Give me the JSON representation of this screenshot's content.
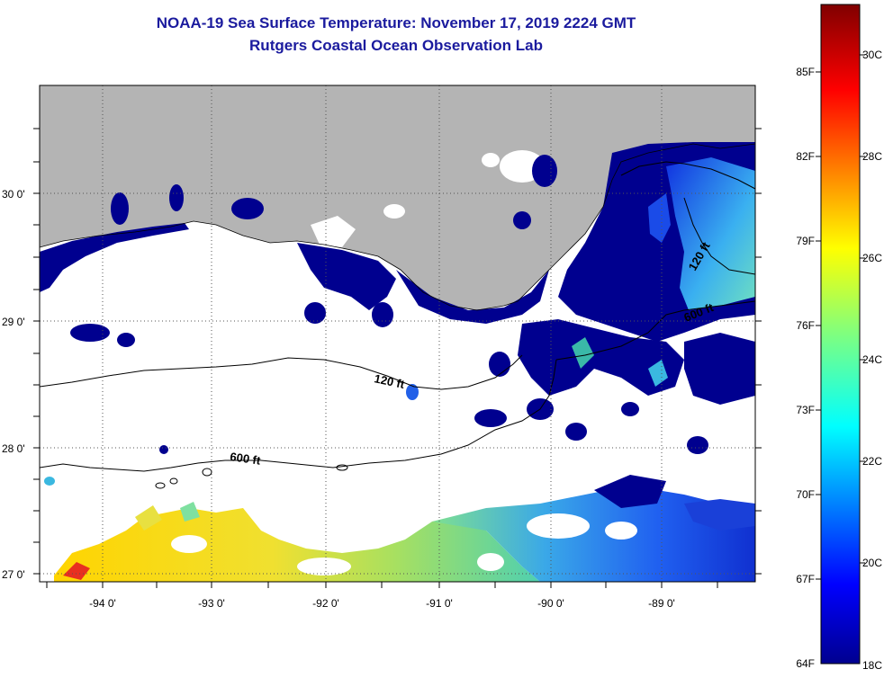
{
  "title": "NOAA-19 Sea Surface Temperature:  November 17, 2019 2224 GMT",
  "subtitle": "Rutgers Coastal Ocean Observation Lab",
  "axes": {
    "lat_ticks": [
      "30 0'",
      "29 0'",
      "28 0'",
      "27 0'"
    ],
    "lon_ticks": [
      "-94 0'",
      "-93 0'",
      "-92 0'",
      "-91 0'",
      "-90 0'",
      "-89 0'"
    ]
  },
  "contours": {
    "label_120_left": "120 ft",
    "label_120_right": "120 ft",
    "label_600_left": "600 ft",
    "label_600_right": "600 ft"
  },
  "colorbar": {
    "fahrenheit_labels": [
      "85F",
      "82F",
      "79F",
      "76F",
      "73F",
      "70F",
      "67F",
      "64F"
    ],
    "celsius_labels": [
      "30C",
      "28C",
      "26C",
      "24C",
      "22C",
      "20C",
      "18C"
    ],
    "min_c": 18,
    "max_c": 31
  },
  "colors": {
    "land": "#b4b4b4",
    "cold": "#00008f",
    "title": "#1b1b9e"
  }
}
